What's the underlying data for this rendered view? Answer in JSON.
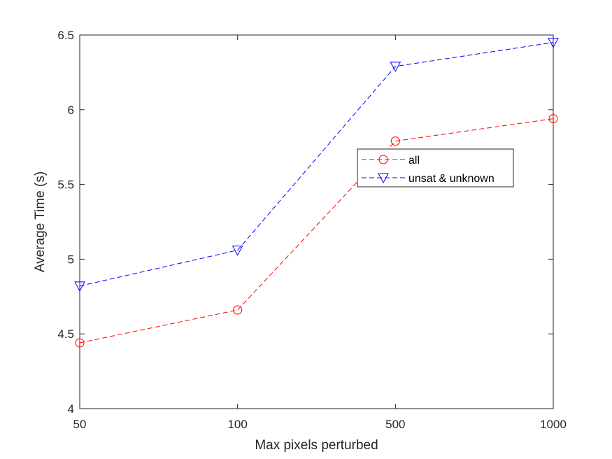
{
  "chart_data": {
    "type": "line",
    "title": "",
    "xlabel": "Max pixels perturbed",
    "ylabel": "Average Time (s)",
    "categories": [
      "50",
      "100",
      "500",
      "1000"
    ],
    "ylim": [
      4,
      6.5
    ],
    "yticks": [
      "4",
      "4.5",
      "5",
      "5.5",
      "6",
      "6.5"
    ],
    "grid": false,
    "legend_position": "center-right",
    "series": [
      {
        "name": "all",
        "color": "#ff0000",
        "marker": "circle",
        "line_style": "dashed",
        "values": [
          4.44,
          4.66,
          5.79,
          5.94
        ]
      },
      {
        "name": "unsat & unknown",
        "color": "#0000ff",
        "marker": "triangle-down",
        "line_style": "dashed",
        "values": [
          4.82,
          5.06,
          6.29,
          6.45
        ]
      }
    ]
  }
}
